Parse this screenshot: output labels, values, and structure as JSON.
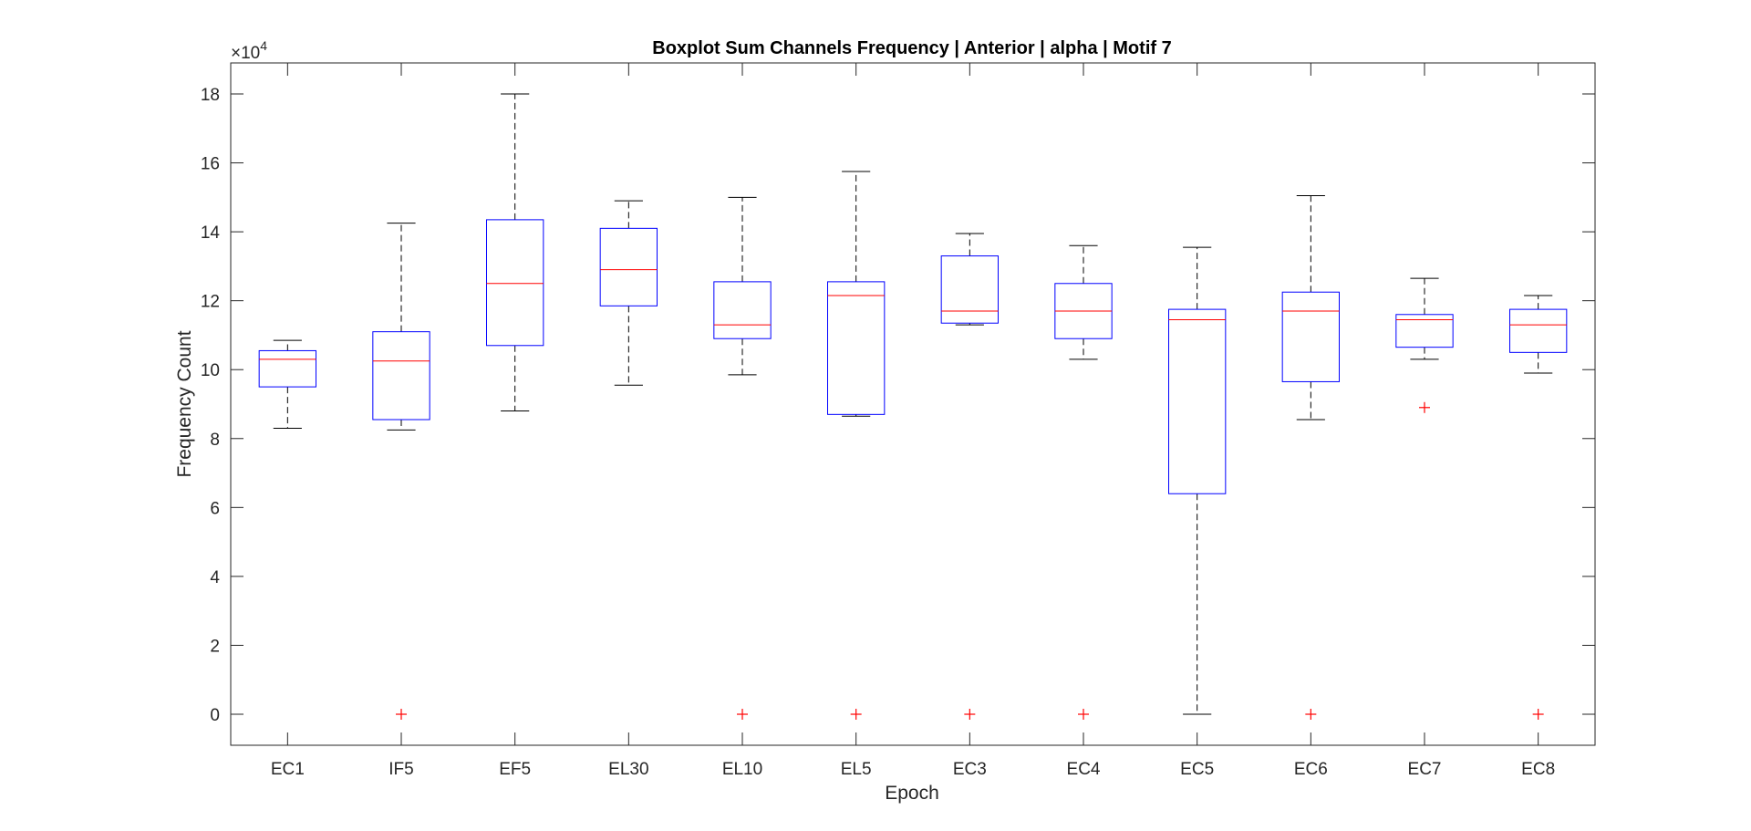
{
  "chart_data": {
    "type": "boxplot",
    "title": "Boxplot Sum Channels Frequency | Anterior | alpha | Motif 7",
    "xlabel": "Epoch",
    "ylabel": "Frequency Count",
    "y_exponent_label": "×10",
    "y_exponent_power": "4",
    "ylim": [
      -0.9,
      18.9
    ],
    "y_multiplier": 10000,
    "yticks": [
      0,
      2,
      4,
      6,
      8,
      10,
      12,
      14,
      16,
      18
    ],
    "ytick_labels": [
      "0",
      "2",
      "4",
      "6",
      "8",
      "10",
      "12",
      "14",
      "16",
      "18"
    ],
    "categories": [
      "EC1",
      "IF5",
      "EF5",
      "EL30",
      "EL10",
      "EL5",
      "EC3",
      "EC4",
      "EC5",
      "EC6",
      "EC7",
      "EC8"
    ],
    "boxes": [
      {
        "category": "EC1",
        "whisker_low": 8.3,
        "q1": 9.5,
        "median": 10.3,
        "q3": 10.55,
        "whisker_high": 10.85,
        "outliers": []
      },
      {
        "category": "IF5",
        "whisker_low": 8.25,
        "q1": 8.55,
        "median": 10.25,
        "q3": 11.1,
        "whisker_high": 14.25,
        "outliers": [
          0
        ]
      },
      {
        "category": "EF5",
        "whisker_low": 8.8,
        "q1": 10.7,
        "median": 12.5,
        "q3": 14.35,
        "whisker_high": 18.0,
        "outliers": []
      },
      {
        "category": "EL30",
        "whisker_low": 9.55,
        "q1": 11.85,
        "median": 12.9,
        "q3": 14.1,
        "whisker_high": 14.9,
        "outliers": []
      },
      {
        "category": "EL10",
        "whisker_low": 9.85,
        "q1": 10.9,
        "median": 11.3,
        "q3": 12.55,
        "whisker_high": 15.0,
        "outliers": [
          0
        ]
      },
      {
        "category": "EL5",
        "whisker_low": 8.65,
        "q1": 8.7,
        "median": 12.15,
        "q3": 12.55,
        "whisker_high": 15.75,
        "outliers": [
          0
        ]
      },
      {
        "category": "EC3",
        "whisker_low": 11.3,
        "q1": 11.35,
        "median": 11.7,
        "q3": 13.3,
        "whisker_high": 13.95,
        "outliers": [
          0
        ]
      },
      {
        "category": "EC4",
        "whisker_low": 10.3,
        "q1": 10.9,
        "median": 11.7,
        "q3": 12.5,
        "whisker_high": 13.6,
        "outliers": [
          0
        ]
      },
      {
        "category": "EC5",
        "whisker_low": 0.0,
        "q1": 6.4,
        "median": 11.45,
        "q3": 11.75,
        "whisker_high": 13.55,
        "outliers": []
      },
      {
        "category": "EC6",
        "whisker_low": 8.55,
        "q1": 9.65,
        "median": 11.7,
        "q3": 12.25,
        "whisker_high": 15.05,
        "outliers": [
          0
        ]
      },
      {
        "category": "EC7",
        "whisker_low": 10.3,
        "q1": 10.65,
        "median": 11.45,
        "q3": 11.6,
        "whisker_high": 12.65,
        "outliers": [
          8.9
        ]
      },
      {
        "category": "EC8",
        "whisker_low": 9.9,
        "q1": 10.5,
        "median": 11.3,
        "q3": 11.75,
        "whisker_high": 12.15,
        "outliers": [
          0
        ]
      }
    ],
    "colors": {
      "box": "#0000ff",
      "median": "#ff0000",
      "whisker": "#000000",
      "outlier": "#ff0000",
      "axis": "#262626"
    },
    "grid": false,
    "legend": false
  }
}
